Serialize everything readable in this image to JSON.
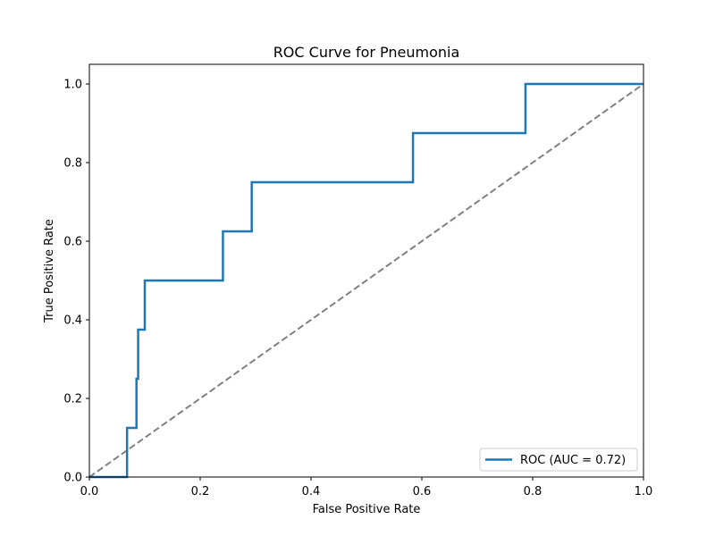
{
  "chart_data": {
    "type": "line",
    "title": "ROC Curve for Pneumonia",
    "xlabel": "False Positive Rate",
    "ylabel": "True Positive Rate",
    "xlim": [
      0.0,
      1.0
    ],
    "ylim": [
      0.0,
      1.05
    ],
    "x_ticks": [
      0.0,
      0.2,
      0.4,
      0.6,
      0.8,
      1.0
    ],
    "y_ticks": [
      0.0,
      0.2,
      0.4,
      0.6,
      0.8,
      1.0
    ],
    "x_tick_labels": [
      "0.0",
      "0.2",
      "0.4",
      "0.6",
      "0.8",
      "1.0"
    ],
    "y_tick_labels": [
      "0.0",
      "0.2",
      "0.4",
      "0.6",
      "0.8",
      "1.0"
    ],
    "grid": false,
    "legend_position": "lower-right",
    "series": [
      {
        "name": "ROC (AUC = 0.72)",
        "color": "#1f77b4",
        "style": "solid",
        "x": [
          0.0,
          0.068,
          0.068,
          0.085,
          0.085,
          0.088,
          0.088,
          0.092,
          0.092,
          0.1,
          0.1,
          0.241,
          0.241,
          0.293,
          0.293,
          0.584,
          0.584,
          0.787,
          0.787,
          1.0
        ],
        "y": [
          0.0,
          0.0,
          0.125,
          0.125,
          0.25,
          0.25,
          0.375,
          0.375,
          0.375,
          0.375,
          0.5,
          0.5,
          0.625,
          0.625,
          0.75,
          0.75,
          0.875,
          0.875,
          1.0,
          1.0
        ]
      },
      {
        "color": "#808080",
        "style": "dashed",
        "x": [
          0.0,
          1.0
        ],
        "y": [
          0.0,
          1.0
        ]
      }
    ]
  }
}
